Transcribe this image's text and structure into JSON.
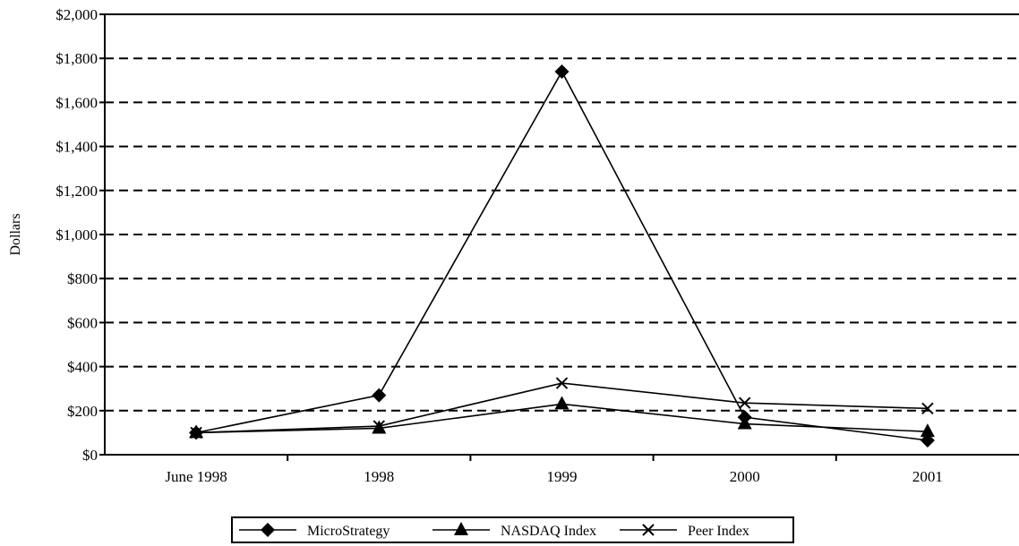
{
  "chart_data": {
    "type": "line",
    "categories": [
      "June 1998",
      "1998",
      "1999",
      "2000",
      "2001"
    ],
    "series": [
      {
        "name": "MicroStrategy",
        "marker": "diamond",
        "values": [
          100,
          270,
          1740,
          170,
          65
        ]
      },
      {
        "name": "NASDAQ Index",
        "marker": "triangle",
        "values": [
          100,
          120,
          230,
          140,
          105
        ]
      },
      {
        "name": "Peer Index",
        "marker": "x",
        "values": [
          100,
          130,
          325,
          235,
          210
        ]
      }
    ],
    "ylabel": "Dollars",
    "xlabel": "",
    "ylim": [
      0,
      2000
    ],
    "yticks": [
      0,
      200,
      400,
      600,
      800,
      1000,
      1200,
      1400,
      1600,
      1800,
      2000
    ],
    "ytick_labels": [
      "$0",
      "$200",
      "$400",
      "$600",
      "$800",
      "$1,000",
      "$1,200",
      "$1,400",
      "$1,600",
      "$1,800",
      "$2,000"
    ],
    "grid": "horizontal dashed",
    "legend_position": "bottom-center",
    "colors": {
      "line": "#000000",
      "grid": "#000000",
      "background": "#ffffff"
    }
  }
}
